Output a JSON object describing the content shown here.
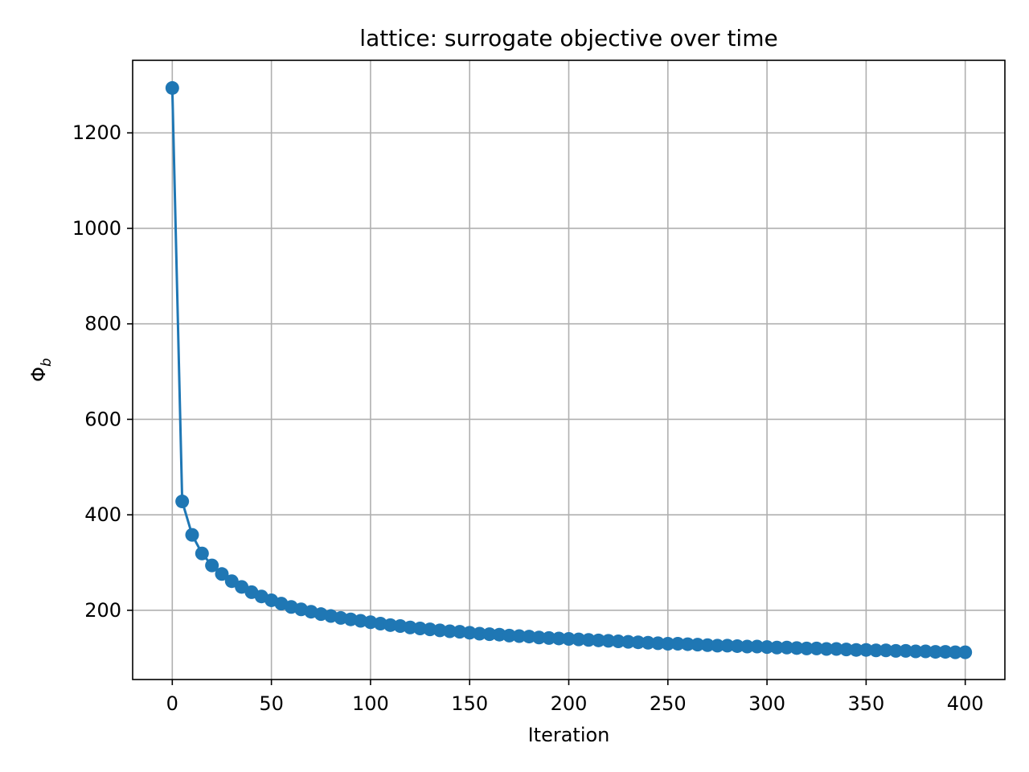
{
  "chart_data": {
    "type": "line",
    "title": "lattice: surrogate objective over time",
    "xlabel": "Iteration",
    "ylabel_main": "Φ",
    "ylabel_sub": "b",
    "xlim": [
      -20,
      420
    ],
    "ylim": [
      55,
      1352
    ],
    "x_ticks": [
      0,
      50,
      100,
      150,
      200,
      250,
      300,
      350,
      400
    ],
    "y_ticks": [
      200,
      400,
      600,
      800,
      1000,
      1200
    ],
    "grid": true,
    "color": "#1f77b4",
    "marker": "circle",
    "series": [
      {
        "x": [
          0,
          5,
          10,
          15,
          20,
          25,
          30,
          35,
          40,
          45,
          50,
          55,
          60,
          65,
          70,
          75,
          80,
          85,
          90,
          95,
          100,
          105,
          110,
          115,
          120,
          125,
          130,
          135,
          140,
          145,
          150,
          155,
          160,
          165,
          170,
          175,
          180,
          185,
          190,
          195,
          200,
          205,
          210,
          215,
          220,
          225,
          230,
          235,
          240,
          245,
          250,
          255,
          260,
          265,
          270,
          275,
          280,
          285,
          290,
          295,
          300,
          305,
          310,
          315,
          320,
          325,
          330,
          335,
          340,
          345,
          350,
          355,
          360,
          365,
          370,
          375,
          380,
          385,
          390,
          395,
          400
        ],
        "values": [
          1294,
          428,
          358,
          319,
          294,
          276,
          261,
          249,
          238,
          229,
          221,
          214,
          207,
          202,
          197,
          192,
          188,
          184,
          181,
          178,
          175,
          172,
          169,
          167,
          164,
          162,
          160,
          158,
          156,
          155,
          153,
          151,
          150,
          149,
          147,
          146,
          145,
          143,
          142,
          141,
          140,
          139,
          138,
          137,
          136,
          135,
          134,
          133,
          132,
          131,
          130,
          130,
          129,
          128,
          127,
          126,
          126,
          125,
          124,
          124,
          123,
          122,
          122,
          121,
          120,
          120,
          119,
          119,
          118,
          117,
          117,
          116,
          116,
          115,
          115,
          114,
          114,
          113,
          113,
          112,
          112
        ]
      }
    ]
  }
}
